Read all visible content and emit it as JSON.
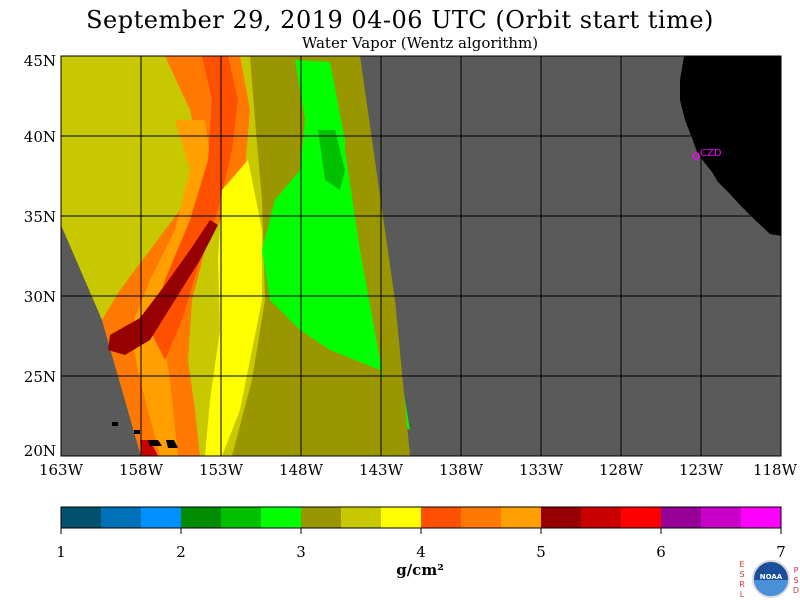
{
  "header": {
    "title": "September 29, 2019  04-06 UTC  (Orbit start time)",
    "subtitle": "Water Vapor (Wentz algorithm)"
  },
  "map": {
    "lat_labels": [
      "45N",
      "40N",
      "35N",
      "30N",
      "25N",
      "20N"
    ],
    "lon_labels": [
      "163W",
      "158W",
      "153W",
      "148W",
      "143W",
      "138W",
      "133W",
      "128W",
      "123W",
      "118W"
    ],
    "station_label": "CZD",
    "colors": {
      "no_data": "#5a5a5a",
      "land": "#000000",
      "station": "#ff00ff"
    }
  },
  "colorbar": {
    "tick_labels": [
      "1",
      "2",
      "3",
      "4",
      "5",
      "6",
      "7"
    ],
    "unit": "g/cm²",
    "colors": [
      "#00506e",
      "#0070b8",
      "#0090ff",
      "#008c00",
      "#00c000",
      "#00ff00",
      "#9a9600",
      "#c8c800",
      "#ffff00",
      "#ff5000",
      "#ff7800",
      "#ffa000",
      "#960000",
      "#c80000",
      "#ff0000",
      "#960096",
      "#c800c8",
      "#ff00ff"
    ]
  },
  "logo": {
    "left_text": "ESRL",
    "right_text": "PSD",
    "center_text": "NOAA"
  }
}
